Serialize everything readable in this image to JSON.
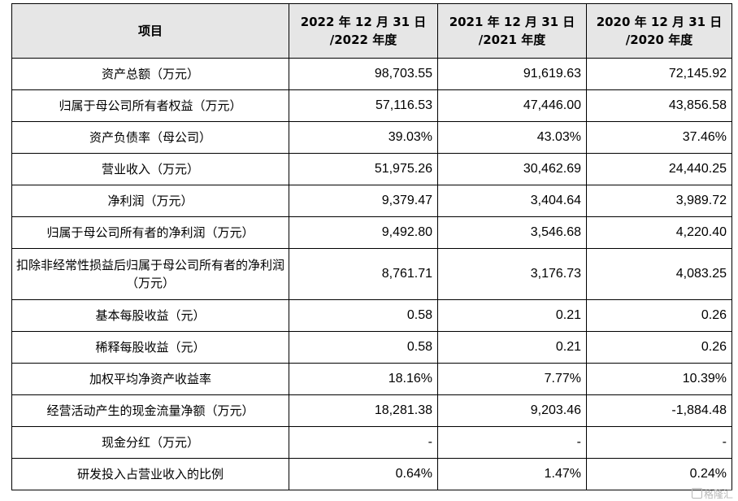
{
  "table": {
    "headers": [
      [
        "项目"
      ],
      [
        "2022 年 12 月 31 日",
        "/2022 年度"
      ],
      [
        "2021 年 12 月 31 日",
        "/2021 年度"
      ],
      [
        "2020 年 12 月 31 日",
        "/2020 年度"
      ]
    ],
    "rows": [
      {
        "label": "资产总额（万元）",
        "v2022": "98,703.55",
        "v2021": "91,619.63",
        "v2020": "72,145.92"
      },
      {
        "label": "归属于母公司所有者权益（万元）",
        "v2022": "57,116.53",
        "v2021": "47,446.00",
        "v2020": "43,856.58"
      },
      {
        "label": "资产负债率（母公司）",
        "v2022": "39.03%",
        "v2021": "43.03%",
        "v2020": "37.46%"
      },
      {
        "label": "营业收入（万元）",
        "v2022": "51,975.26",
        "v2021": "30,462.69",
        "v2020": "24,440.25"
      },
      {
        "label": "净利润（万元）",
        "v2022": "9,379.47",
        "v2021": "3,404.64",
        "v2020": "3,989.72"
      },
      {
        "label": "归属于母公司所有者的净利润（万元）",
        "v2022": "9,492.80",
        "v2021": "3,546.68",
        "v2020": "4,220.40"
      },
      {
        "label": "扣除非经常性损益后归属于母公司所有者的净利润（万元）",
        "v2022": "8,761.71",
        "v2021": "3,176.73",
        "v2020": "4,083.25"
      },
      {
        "label": "基本每股收益（元）",
        "v2022": "0.58",
        "v2021": "0.21",
        "v2020": "0.26"
      },
      {
        "label": "稀释每股收益（元）",
        "v2022": "0.58",
        "v2021": "0.21",
        "v2020": "0.26"
      },
      {
        "label": "加权平均净资产收益率",
        "v2022": "18.16%",
        "v2021": "7.77%",
        "v2020": "10.39%"
      },
      {
        "label": "经营活动产生的现金流量净额（万元）",
        "v2022": "18,281.38",
        "v2021": "9,203.46",
        "v2020": "-1,884.48"
      },
      {
        "label": "现金分红（万元）",
        "v2022": "-",
        "v2021": "-",
        "v2020": "-"
      },
      {
        "label": "研发投入占营业收入的比例",
        "v2022": "0.64%",
        "v2021": "1.47%",
        "v2020": "0.24%"
      }
    ]
  },
  "watermark": "格隆汇"
}
